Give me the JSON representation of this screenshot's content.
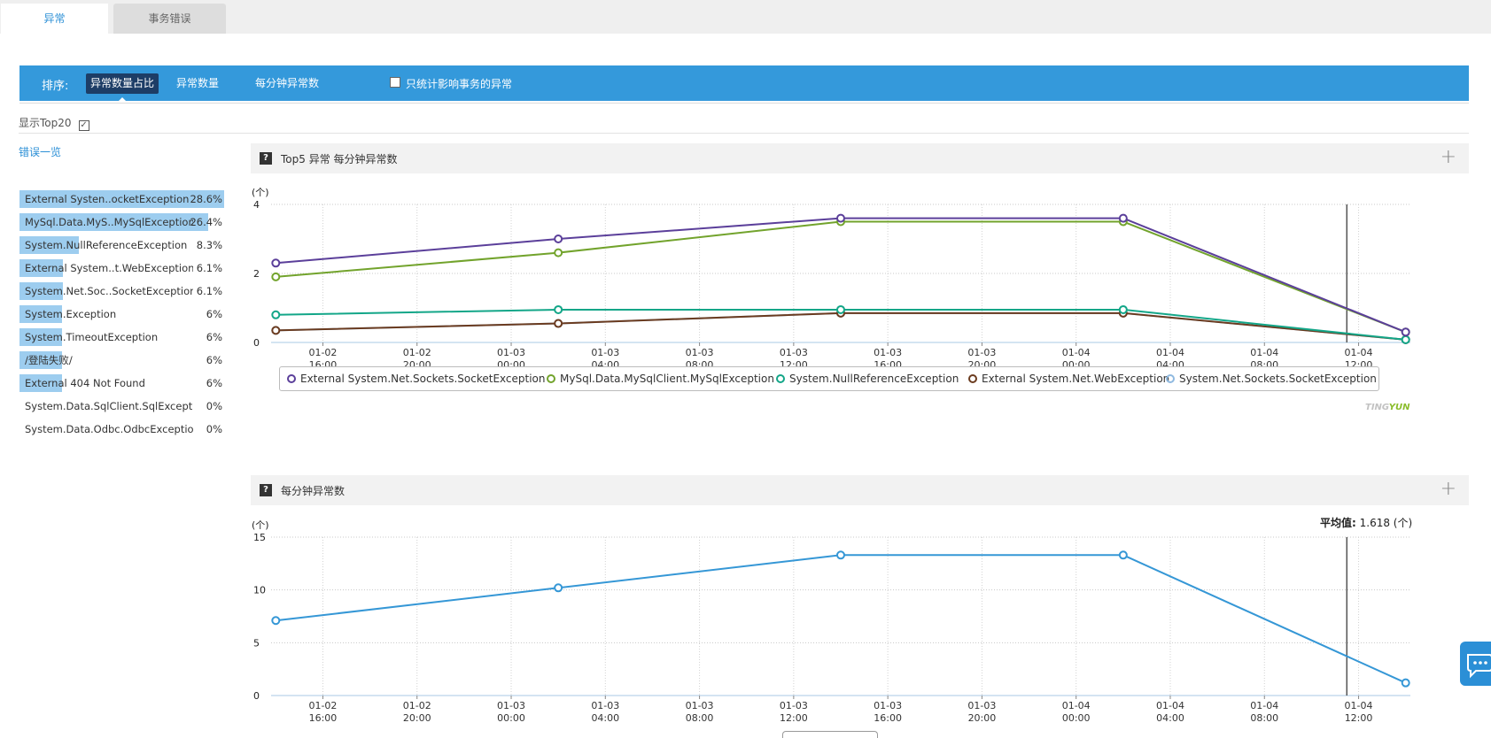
{
  "tabs": [
    {
      "label": "异常",
      "active": true
    },
    {
      "label": "事务错误",
      "active": false
    }
  ],
  "sortbar": {
    "label": "排序:",
    "options": [
      "异常数量占比",
      "异常数量",
      "每分钟异常数"
    ],
    "active_option": "异常数量占比",
    "checkbox_label": "只统计影响事务的异常",
    "checkbox_checked": false
  },
  "top20": {
    "label": "显示Top20",
    "checked": true
  },
  "error_list": {
    "title": "错误一览",
    "items": [
      {
        "name": "External Systen..ocketException",
        "percent": "28.6%",
        "share": 28.6
      },
      {
        "name": "MySql.Data.MyS..MySqlException",
        "percent": "26.4%",
        "share": 26.4
      },
      {
        "name": "System.NullReferenceException",
        "percent": "8.3%",
        "share": 8.3
      },
      {
        "name": "External System..t.WebException",
        "percent": "6.1%",
        "share": 6.1
      },
      {
        "name": "System.Net.Soc..SocketException",
        "percent": "6.1%",
        "share": 6.1
      },
      {
        "name": "System.Exception",
        "percent": "6%",
        "share": 6
      },
      {
        "name": "System.TimeoutException",
        "percent": "6%",
        "share": 6
      },
      {
        "name": "/登陆失败/",
        "percent": "6%",
        "share": 6
      },
      {
        "name": "External 404 Not Found",
        "percent": "6%",
        "share": 6
      },
      {
        "name": "System.Data.SqlClient.SqlException",
        "percent": "0%",
        "share": 0
      },
      {
        "name": "System.Data.Odbc.OdbcException",
        "percent": "0%",
        "share": 0
      }
    ]
  },
  "panels": {
    "top5": {
      "help": "?",
      "title": "Top5 异常 每分钟异常数",
      "expand": "+"
    },
    "perminute": {
      "help": "?",
      "title": "每分钟异常数",
      "expand": "+"
    }
  },
  "brand": {
    "a": "TING",
    "b": "YUN"
  },
  "avg": {
    "label": "平均值:",
    "value": "1.618 (个)"
  },
  "colors": {
    "accent": "#3499db",
    "series": [
      "#5b3f9a",
      "#72a32c",
      "#13a688",
      "#6b3b1f",
      "#8fb9e0"
    ],
    "single": "#3597d6"
  },
  "chart_data": [
    {
      "type": "line",
      "title": "Top5 异常 每分钟异常数",
      "ylabel": "(个)",
      "ylim": [
        0,
        4
      ],
      "yticks": [
        0,
        2,
        4
      ],
      "xticks": [
        {
          "d": "01-02",
          "t": "16:00"
        },
        {
          "d": "01-02",
          "t": "20:00"
        },
        {
          "d": "01-03",
          "t": "00:00"
        },
        {
          "d": "01-03",
          "t": "04:00"
        },
        {
          "d": "01-03",
          "t": "08:00"
        },
        {
          "d": "01-03",
          "t": "12:00"
        },
        {
          "d": "01-03",
          "t": "16:00"
        },
        {
          "d": "01-03",
          "t": "20:00"
        },
        {
          "d": "01-04",
          "t": "00:00"
        },
        {
          "d": "01-04",
          "t": "04:00"
        },
        {
          "d": "01-04",
          "t": "08:00"
        },
        {
          "d": "01-04",
          "t": "12:00"
        }
      ],
      "x_hours": [
        -2,
        10,
        22,
        34,
        46
      ],
      "xlim": [
        -2.2,
        46.2
      ],
      "marker_hour": 43.5,
      "series": [
        {
          "name": "External System.Net.Sockets.SocketException",
          "values": [
            2.3,
            3.0,
            3.6,
            3.6,
            0.3
          ]
        },
        {
          "name": "MySql.Data.MySqlClient.MySqlException",
          "values": [
            1.9,
            2.6,
            3.5,
            3.5,
            0.3
          ]
        },
        {
          "name": "System.NullReferenceException",
          "values": [
            0.8,
            0.95,
            0.95,
            0.95,
            0.08
          ]
        },
        {
          "name": "External System.Net.WebException",
          "values": [
            0.35,
            0.55,
            0.85,
            0.85,
            0.08
          ]
        },
        {
          "name": "System.Net.Sockets.SocketException",
          "values": [
            0.35,
            0.55,
            0.85,
            0.85,
            0.08
          ]
        }
      ]
    },
    {
      "type": "line",
      "title": "每分钟异常数",
      "ylabel": "(个)",
      "ylim": [
        0,
        15
      ],
      "yticks": [
        0,
        5,
        10,
        15
      ],
      "xticks": [
        {
          "d": "01-02",
          "t": "16:00"
        },
        {
          "d": "01-02",
          "t": "20:00"
        },
        {
          "d": "01-03",
          "t": "00:00"
        },
        {
          "d": "01-03",
          "t": "04:00"
        },
        {
          "d": "01-03",
          "t": "08:00"
        },
        {
          "d": "01-03",
          "t": "12:00"
        },
        {
          "d": "01-03",
          "t": "16:00"
        },
        {
          "d": "01-03",
          "t": "20:00"
        },
        {
          "d": "01-04",
          "t": "00:00"
        },
        {
          "d": "01-04",
          "t": "04:00"
        },
        {
          "d": "01-04",
          "t": "08:00"
        },
        {
          "d": "01-04",
          "t": "12:00"
        }
      ],
      "x_hours": [
        -2,
        10,
        22,
        34,
        46
      ],
      "xlim": [
        -2.2,
        46.2
      ],
      "marker_hour": 43.5,
      "series": [
        {
          "name": "每分钟异常数",
          "values": [
            7.1,
            10.2,
            13.3,
            13.3,
            1.2
          ]
        }
      ]
    }
  ]
}
